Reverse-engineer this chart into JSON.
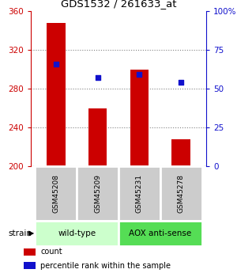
{
  "title": "GDS1532 / 261633_at",
  "samples": [
    "GSM45208",
    "GSM45209",
    "GSM45231",
    "GSM45278"
  ],
  "counts": [
    348,
    260,
    300,
    228
  ],
  "percentiles": [
    66,
    57,
    59,
    54
  ],
  "ymin": 200,
  "ymax": 360,
  "y_ticks": [
    200,
    240,
    280,
    320,
    360
  ],
  "y2min": 0,
  "y2max": 100,
  "y2_ticks": [
    0,
    25,
    50,
    75,
    100
  ],
  "bar_color": "#cc0000",
  "dot_color": "#1111cc",
  "groups": [
    {
      "label": "wild-type",
      "indices": [
        0,
        1
      ],
      "color": "#ccffcc"
    },
    {
      "label": "AOX anti-sense",
      "indices": [
        2,
        3
      ],
      "color": "#55dd55"
    }
  ],
  "strain_label": "strain",
  "legend_count_label": "count",
  "legend_pct_label": "percentile rank within the sample",
  "sample_box_color": "#cccccc",
  "bar_width": 0.45
}
